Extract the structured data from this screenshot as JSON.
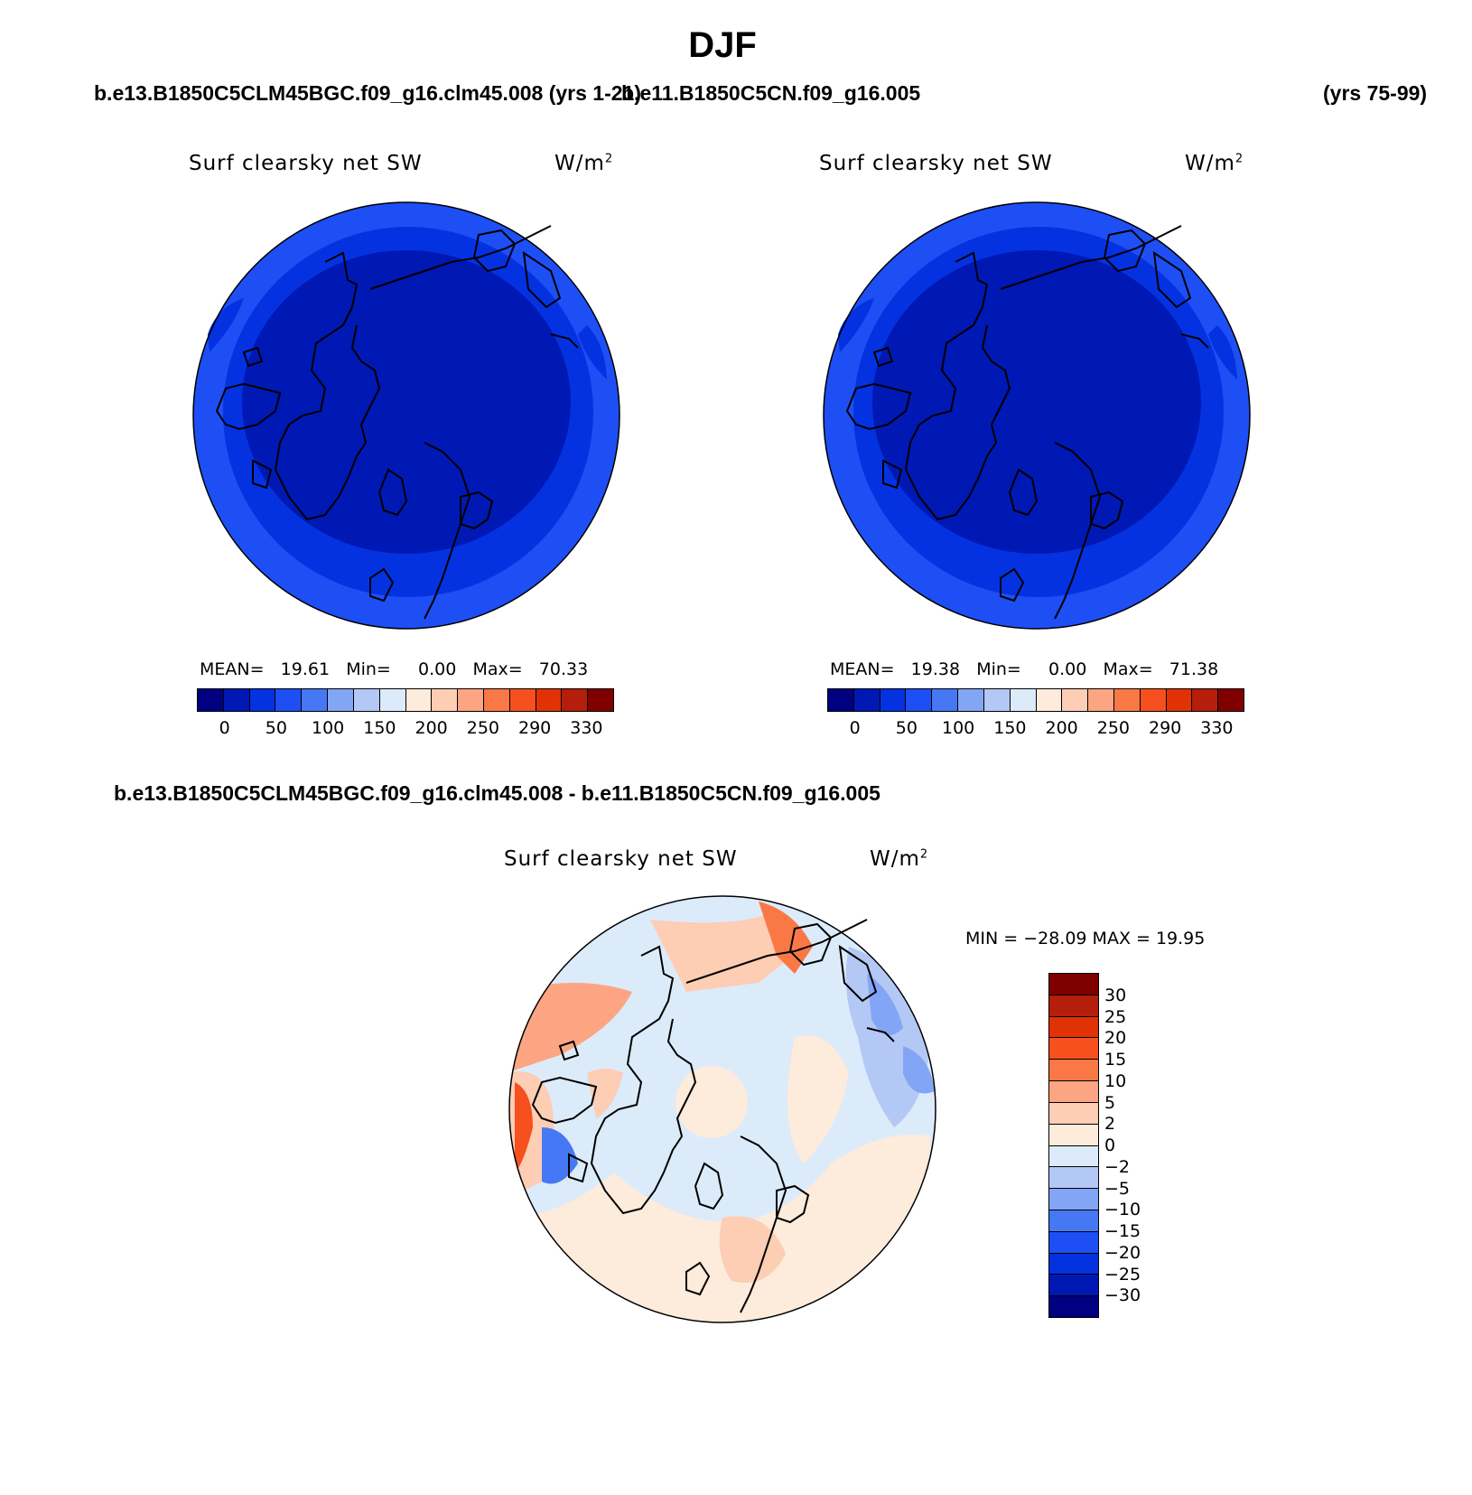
{
  "title": "DJF",
  "headers": {
    "left": "b.e13.B1850C5CLM45BGC.f09_g16.clm45.008 (yrs 1-21)",
    "middle": "b.e11.B1850C5CN.f09_g16.005",
    "right": "(yrs 75-99)",
    "diff": "b.e13.B1850C5CLM45BGC.f09_g16.clm45.008 - b.e11.B1850C5CN.f09_g16.005"
  },
  "panels": [
    {
      "label": "Surf clearsky net SW",
      "units_text": "W/m",
      "units_sup": "2",
      "stats": {
        "mean_label": "MEAN=",
        "mean": "19.61",
        "min_label": "Min=",
        "min": "0.00",
        "max_label": "Max=",
        "max": "70.33"
      }
    },
    {
      "label": "Surf clearsky net SW",
      "units_text": "W/m",
      "units_sup": "2",
      "stats": {
        "mean_label": "MEAN=",
        "mean": "19.38",
        "min_label": "Min=",
        "min": "0.00",
        "max_label": "Max=",
        "max": "71.38"
      }
    }
  ],
  "diff_panel": {
    "label": "Surf clearsky net SW",
    "units_text": "W/m",
    "units_sup": "2",
    "minmax": "MIN = −28.09 MAX =   19.95"
  },
  "colorbar_top": {
    "colors": [
      "#000080",
      "#0019b4",
      "#0532e1",
      "#1e4ff5",
      "#4678f5",
      "#82a5f5",
      "#b4c8f5",
      "#dcebfa",
      "#fdebdc",
      "#fdcdb4",
      "#fda582",
      "#fa7846",
      "#f5501e",
      "#e13205",
      "#b41e0a",
      "#800000"
    ],
    "ticks": [
      "0",
      "50",
      "100",
      "150",
      "200",
      "250",
      "290",
      "330"
    ]
  },
  "colorbar_diff": {
    "colors": [
      "#800000",
      "#b41e0a",
      "#e13205",
      "#f5501e",
      "#fa7846",
      "#fda582",
      "#fdcdb4",
      "#fdebdc",
      "#dcebfa",
      "#b4c8f5",
      "#82a5f5",
      "#4678f5",
      "#1e4ff5",
      "#0532e1",
      "#0019b4",
      "#000080"
    ],
    "ticks": [
      "30",
      "25",
      "20",
      "15",
      "10",
      "5",
      "2",
      "0",
      "−2",
      "−5",
      "−10",
      "−15",
      "−20",
      "−25",
      "−30"
    ]
  }
}
